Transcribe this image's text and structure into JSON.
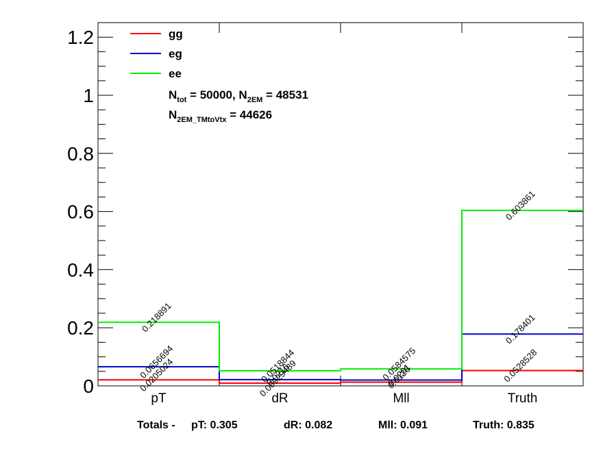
{
  "chart_data": {
    "type": "step",
    "categories": [
      "pT",
      "dR",
      "Mll",
      "Truth"
    ],
    "ylim": [
      0,
      1.25
    ],
    "yticks": [
      "0",
      "0.2",
      "0.4",
      "0.6",
      "0.8",
      "1",
      "1.2"
    ],
    "ytick_values": [
      0,
      0.2,
      0.4,
      0.6,
      0.8,
      1.0,
      1.2
    ],
    "series": [
      {
        "name": "gg",
        "color": "#ff0000",
        "values": [
          0.0205024,
          0.00929489,
          0.0126,
          0.0528528
        ],
        "labels": [
          "0.0205024",
          "0.00929489",
          "0.0126",
          "0.0528528"
        ]
      },
      {
        "name": "eg",
        "color": "#0000cc",
        "values": [
          0.0656694,
          0.0216,
          0.0201,
          0.178401
        ],
        "labels": [
          "0.0656694",
          "0.0216",
          "0.0201",
          "0.178401"
        ]
      },
      {
        "name": "ee",
        "color": "#00ee00",
        "values": [
          0.218891,
          0.0518844,
          0.0584575,
          0.603861
        ],
        "labels": [
          "0.218891",
          "0.0518844",
          "0.0584575",
          "0.603861"
        ]
      }
    ],
    "legend_info": {
      "line1_main": "N",
      "line1_sub1": "tot",
      "line1_mid": " = 50000, N",
      "line1_sub2": "2EM",
      "line1_end": " = 48531",
      "line2_main": "N",
      "line2_sub": "2EM_TMtoVtx",
      "line2_end": "  = 44626"
    }
  },
  "totals": {
    "prefix": "Totals -",
    "pT": "pT: 0.305",
    "dR": "dR: 0.082",
    "Mll": "Mll: 0.091",
    "Truth": "Truth: 0.835"
  }
}
